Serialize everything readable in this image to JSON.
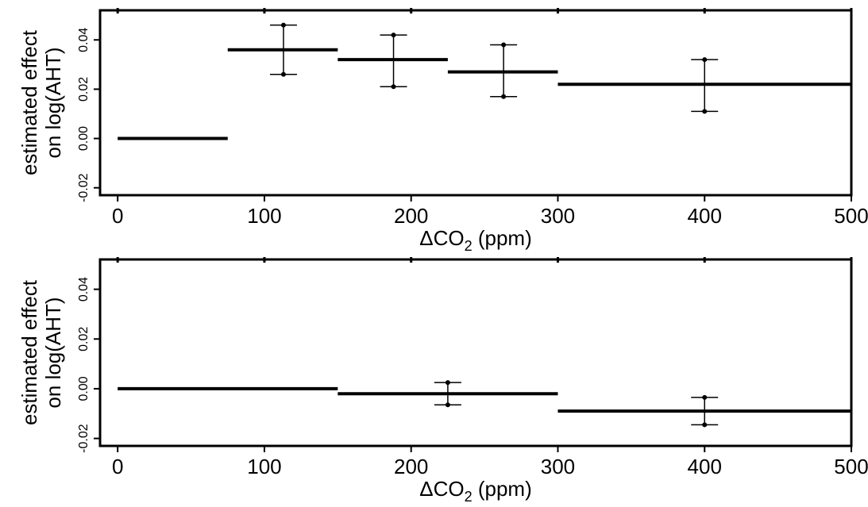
{
  "chart_data": [
    {
      "type": "step",
      "x_ticks": [
        0,
        100,
        200,
        300,
        400,
        500
      ],
      "x_tick_labels": [
        "0",
        "100",
        "200",
        "300",
        "400",
        "500"
      ],
      "y_ticks": [
        -0.02,
        0.0,
        0.02,
        0.04
      ],
      "y_tick_labels": [
        "-0.02",
        "0.00",
        "0.02",
        "0.04"
      ],
      "xlabel_main": "ΔCO",
      "xlabel_sub": "2",
      "xlabel_rest": " (ppm)",
      "ylabel_line1": "estimated effect",
      "ylabel_line2": "on log(AHT)",
      "xlim": [
        -12,
        500
      ],
      "ylim": [
        -0.023,
        0.052
      ],
      "segments": [
        {
          "x0": 0,
          "x1": 75,
          "y": 0.0
        },
        {
          "x0": 75,
          "x1": 150,
          "y": 0.036
        },
        {
          "x0": 150,
          "x1": 225,
          "y": 0.032
        },
        {
          "x0": 225,
          "x1": 300,
          "y": 0.027
        },
        {
          "x0": 300,
          "x1": 500,
          "y": 0.022
        }
      ],
      "error_bars": [
        {
          "x": 113,
          "low": 0.026,
          "high": 0.046
        },
        {
          "x": 188,
          "low": 0.021,
          "high": 0.042
        },
        {
          "x": 263,
          "low": 0.017,
          "high": 0.038
        },
        {
          "x": 400,
          "low": 0.011,
          "high": 0.032
        }
      ]
    },
    {
      "type": "step",
      "x_ticks": [
        0,
        100,
        200,
        300,
        400,
        500
      ],
      "x_tick_labels": [
        "0",
        "100",
        "200",
        "300",
        "400",
        "500"
      ],
      "y_ticks": [
        -0.02,
        0.0,
        0.02,
        0.04
      ],
      "y_tick_labels": [
        "-0.02",
        "0.00",
        "0.02",
        "0.04"
      ],
      "xlabel_main": "ΔCO",
      "xlabel_sub": "2",
      "xlabel_rest": " (ppm)",
      "ylabel_line1": "estimated effect",
      "ylabel_line2": "on log(AHT)",
      "xlim": [
        -12,
        500
      ],
      "ylim": [
        -0.023,
        0.052
      ],
      "segments": [
        {
          "x0": 0,
          "x1": 150,
          "y": 0.0
        },
        {
          "x0": 150,
          "x1": 300,
          "y": -0.002
        },
        {
          "x0": 300,
          "x1": 500,
          "y": -0.009
        }
      ],
      "error_bars": [
        {
          "x": 225,
          "low": -0.0065,
          "high": 0.0025
        },
        {
          "x": 400,
          "low": -0.0145,
          "high": -0.0035
        }
      ]
    }
  ]
}
